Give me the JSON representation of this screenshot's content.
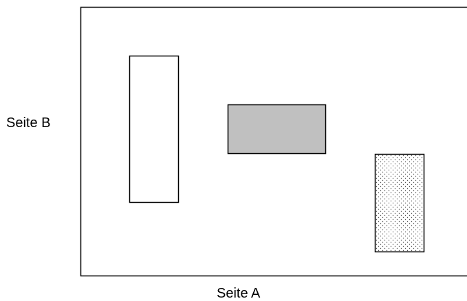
{
  "labels": {
    "side_b": "Seite B",
    "side_a": "Seite A"
  },
  "colors": {
    "outline": "#000000",
    "background": "#ffffff",
    "gray_fill": "#c0c0c0",
    "dot_fill": "#555555"
  }
}
